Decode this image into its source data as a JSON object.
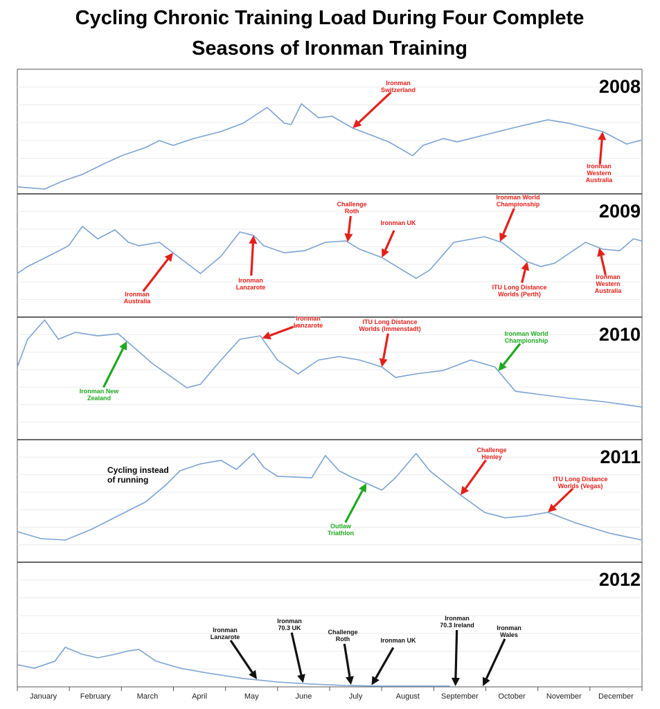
{
  "title": "Cycling Chronic Training Load During Four Complete Seasons of Ironman Training",
  "months": [
    "January",
    "February",
    "March",
    "April",
    "May",
    "June",
    "July",
    "August",
    "September",
    "October",
    "November",
    "December"
  ],
  "chart_data": [
    {
      "type": "line",
      "title": "2008",
      "color": "#7aa3d3",
      "xlim": [
        0,
        365
      ],
      "ylim": [
        0,
        100
      ],
      "x": [
        0,
        16,
        26,
        38,
        51,
        61,
        75,
        83,
        91,
        103,
        119,
        132,
        146,
        156,
        160,
        166,
        176,
        184,
        196,
        217,
        231,
        237,
        249,
        257,
        273,
        294,
        310,
        322,
        342,
        356,
        365
      ],
      "values": [
        5.6,
        3.9,
        10,
        15.6,
        24.4,
        30.6,
        37.2,
        42.8,
        38.9,
        44.4,
        50,
        56.7,
        69.4,
        56.7,
        55.6,
        72.2,
        61.1,
        62.2,
        52.8,
        41.7,
        30.6,
        38.9,
        44.4,
        41.7,
        47.2,
        54.4,
        59.4,
        56.7,
        50,
        40,
        43.3
      ],
      "annotations": [
        {
          "label": "Ironman Switzerland",
          "x": 196,
          "color": "#e3201b"
        },
        {
          "label": "Ironman Western Australia",
          "x": 342,
          "color": "#e3201b"
        }
      ]
    },
    {
      "type": "line",
      "title": "2009",
      "color": "#7aa3d3",
      "xlim": [
        0,
        365
      ],
      "ylim": [
        0,
        100
      ],
      "x": [
        0,
        6,
        18,
        30,
        38,
        47,
        57,
        65,
        71,
        83,
        91,
        107,
        119,
        130,
        138,
        144,
        156,
        168,
        180,
        192,
        200,
        213,
        233,
        241,
        255,
        273,
        283,
        298,
        306,
        314,
        332,
        342,
        352,
        360,
        365
      ],
      "values": [
        35.4,
        41,
        49.4,
        57.9,
        73.6,
        63.5,
        70.8,
        60.7,
        57.9,
        60.7,
        52.2,
        35.4,
        49.4,
        69.1,
        66.3,
        57.9,
        52.2,
        53.9,
        60.7,
        61.8,
        55.1,
        48.3,
        31.5,
        38.2,
        60.7,
        65.2,
        60.7,
        44.9,
        41,
        43.8,
        60.7,
        55.1,
        53.9,
        63.5,
        61.8
      ],
      "annotations": [
        {
          "label": "Ironman Australia",
          "x": 91,
          "color": "#e3201b"
        },
        {
          "label": "Ironman Lanzarote",
          "x": 138,
          "color": "#e3201b"
        },
        {
          "label": "Challenge Roth",
          "x": 193,
          "color": "#e3201b"
        },
        {
          "label": "Ironman UK",
          "x": 213,
          "color": "#e3201b"
        },
        {
          "label": "Ironman World Championship",
          "x": 282,
          "color": "#e3201b"
        },
        {
          "label": "ITU Long Distance Worlds (Perth)",
          "x": 298,
          "color": "#e3201b"
        },
        {
          "label": "Ironman Western Australia",
          "x": 340,
          "color": "#e3201b"
        }
      ]
    },
    {
      "type": "line",
      "title": "2010",
      "color": "#7aa3d3",
      "xlim": [
        0,
        365
      ],
      "ylim": [
        0,
        100
      ],
      "x": [
        0,
        6,
        16,
        24,
        34,
        47,
        59,
        65,
        79,
        99,
        107,
        119,
        130,
        142,
        152,
        164,
        176,
        188,
        200,
        213,
        221,
        233,
        249,
        265,
        279,
        291,
        306,
        322,
        342,
        365
      ],
      "values": [
        59.3,
        81.9,
        97.7,
        81.9,
        87.6,
        84.7,
        86.4,
        79.1,
        62.1,
        42.4,
        45.2,
        65,
        81.9,
        84.7,
        65,
        53.7,
        65,
        67.8,
        65,
        59.3,
        50.8,
        53.7,
        56.5,
        65,
        59.3,
        39.5,
        36.7,
        33.9,
        31.1,
        26.6
      ],
      "annotations": [
        {
          "label": "Ironman New Zealand",
          "x": 64,
          "color": "#1fa81f"
        },
        {
          "label": "Ironman Lanzarote",
          "x": 143,
          "color": "#e3201b"
        },
        {
          "label": "ITU Long Distance Worlds (Immenstadt)",
          "x": 213,
          "color": "#e3201b"
        },
        {
          "label": "Ironman World Championship",
          "x": 281,
          "color": "#1fa81f"
        }
      ]
    },
    {
      "type": "line",
      "title": "2011",
      "color": "#7aa3d3",
      "xlim": [
        0,
        365
      ],
      "ylim": [
        0,
        100
      ],
      "x": [
        0,
        14,
        28,
        43,
        59,
        75,
        87,
        95,
        107,
        119,
        128,
        138,
        144,
        152,
        172,
        180,
        188,
        196,
        204,
        213,
        221,
        233,
        241,
        259,
        273,
        285,
        298,
        310,
        326,
        346,
        365
      ],
      "values": [
        24.9,
        19.2,
        18.1,
        26.6,
        37.9,
        49.2,
        63.3,
        74.6,
        80.2,
        83.1,
        75.7,
        88.7,
        77.4,
        70.1,
        68.9,
        87,
        74.6,
        68.9,
        64.4,
        58.8,
        68.9,
        88.7,
        74.6,
        54.8,
        40.7,
        36.2,
        37.9,
        40.7,
        32.2,
        23.7,
        18.1
      ],
      "note": "Cycling instead of running",
      "annotations": [
        {
          "label": "Outlaw Triathlon",
          "x": 204,
          "color": "#1fa81f"
        },
        {
          "label": "Challenge Henley",
          "x": 259,
          "color": "#e3201b"
        },
        {
          "label": "ITU Long Distance Worlds (Vegas)",
          "x": 310,
          "color": "#e3201b"
        }
      ]
    },
    {
      "type": "line",
      "title": "2012",
      "color": "#7aa3d3",
      "xlim": [
        0,
        365
      ],
      "ylim": [
        0,
        100
      ],
      "x": [
        0,
        10,
        22,
        28,
        38,
        47,
        57,
        65,
        71,
        81,
        95,
        111,
        132,
        152,
        172,
        192,
        213,
        233,
        253
      ],
      "values": [
        17.8,
        15,
        20.6,
        31.7,
        26.1,
        23.3,
        26.1,
        28.9,
        30,
        20.6,
        15,
        11.1,
        6.7,
        3.9,
        2.2,
        1.1,
        0.6,
        0.6,
        0.6
      ],
      "annotations": [
        {
          "label": "Ironman Lanzarote",
          "x": 140,
          "color": "#111111"
        },
        {
          "label": "Ironman 70.3 UK",
          "x": 167,
          "color": "#111111"
        },
        {
          "label": "Challenge Roth",
          "x": 195,
          "color": "#111111"
        },
        {
          "label": "Ironman UK",
          "x": 207,
          "color": "#111111"
        },
        {
          "label": "Ironman 70.3 Ireland",
          "x": 256,
          "color": "#111111"
        },
        {
          "label": "Ironman Wales",
          "x": 272,
          "color": "#111111"
        }
      ]
    }
  ]
}
